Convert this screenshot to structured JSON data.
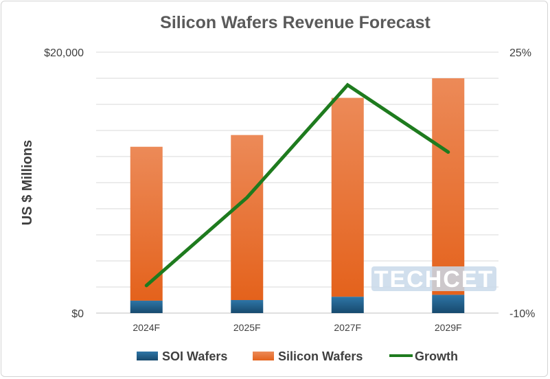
{
  "chart_data": {
    "type": "bar",
    "title": "Silicon Wafers Revenue Forecast",
    "ylabel": "US $ Millions",
    "categories": [
      "2024F",
      "2025F",
      "2027F",
      "2029F"
    ],
    "series": [
      {
        "name": "SOI Wafers",
        "type": "bar",
        "stacked": true,
        "values": [
          950,
          1000,
          1250,
          1400
        ],
        "color": "#1f5f8b"
      },
      {
        "name": "Silicon Wafers",
        "type": "bar",
        "stacked": true,
        "values": [
          11800,
          12650,
          15250,
          16600
        ],
        "color": "#ed7d31"
      },
      {
        "name": "Growth",
        "type": "line",
        "axis": "secondary",
        "values": [
          -6.3,
          5.5,
          20.6,
          11.6
        ],
        "color": "#1e7b1e"
      }
    ],
    "ylim": [
      0,
      20000
    ],
    "y2lim": [
      -10,
      25
    ],
    "y_tick_labels": [
      "$0",
      "$20,000"
    ],
    "y2_tick_labels": [
      "-10%",
      "25%"
    ],
    "grid": true,
    "legend": "bottom",
    "watermark": "TECHCET"
  }
}
